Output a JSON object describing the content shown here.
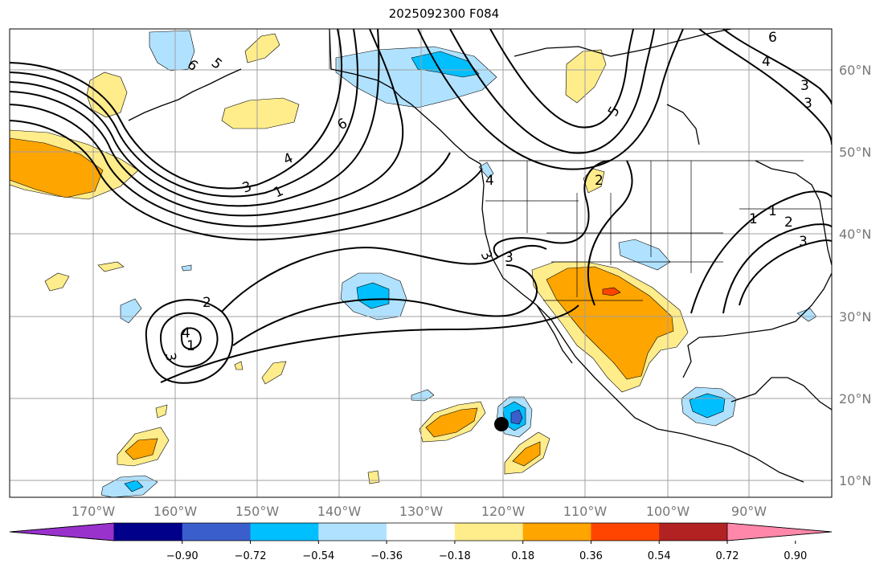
{
  "title": "2025092300 F084",
  "lon_labels": [
    "170°W",
    "160°W",
    "150°W",
    "140°W",
    "130°W",
    "120°W",
    "110°W",
    "100°W",
    "90°W"
  ],
  "lat_labels": [
    "60°N",
    "50°N",
    "40°N",
    "30°N",
    "20°N",
    "10°N"
  ],
  "colorbar": {
    "tick_labels": [
      "−0.90",
      "−0.72",
      "−0.54",
      "−0.36",
      "−0.18",
      "0.18",
      "0.36",
      "0.54",
      "0.72",
      "0.90"
    ],
    "colors": [
      "#9932cc",
      "#00008b",
      "#3a5fcd",
      "#00bfff",
      "#b0e2ff",
      "#ffffff",
      "#ffec8b",
      "#ffa500",
      "#ff4500",
      "#b22222",
      "#ff88aa"
    ]
  },
  "contour_labels": [
    "6",
    "5",
    "4",
    "3",
    "1",
    "6",
    "4",
    "3",
    "1",
    "2",
    "3",
    "3",
    "4",
    "2",
    "5",
    "6",
    "4",
    "3",
    "1",
    "1",
    "2",
    "3",
    "3"
  ],
  "colors": {
    "pos1": "#ffec8b",
    "pos2": "#ffa500",
    "pos3": "#ff4500",
    "neg1": "#b0e2ff",
    "neg2": "#00bfff",
    "neg3": "#3a5fcd",
    "neg4": "#9932cc",
    "grid": "#a0a0a0",
    "axis_label": "#777777"
  }
}
